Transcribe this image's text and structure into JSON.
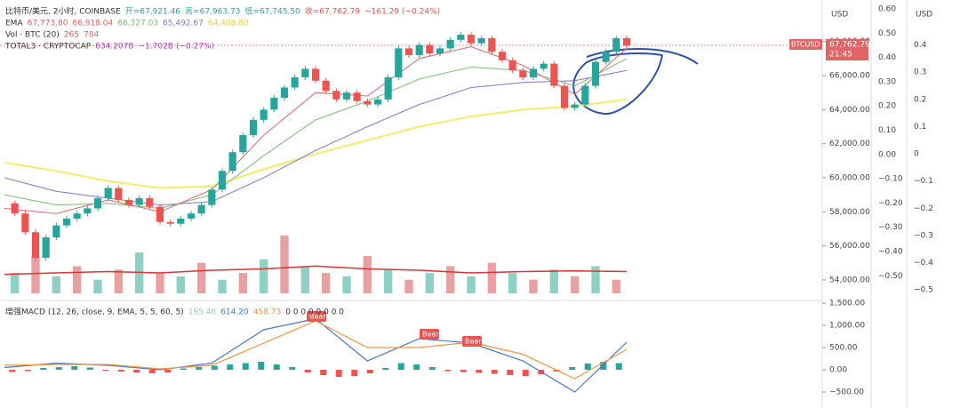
{
  "chart_data": [
    {
      "type": "candlestick",
      "legend_lines": [
        [
          "比特币/美元, 2小时, COINBASE",
          "开=67,921.46",
          "高=67,963.73",
          "低=67,745.50",
          "收=67,762.79",
          "−161.29 (−0.24%)"
        ],
        [
          "EMA",
          "67,773.80",
          "66,918.04",
          "66,327.03",
          "65,492.67",
          "64,408.80"
        ],
        [
          "Vol · BTC (20)",
          "265",
          "784"
        ],
        [
          "TOTAL3 · CRYPTOCAP",
          "634.207B",
          "−1.702B (−0.27%)"
        ]
      ],
      "closes": [
        58500,
        57900,
        56800,
        55300,
        56500,
        57200,
        57600,
        57900,
        58200,
        58800,
        59400,
        58700,
        58400,
        58800,
        58300,
        57400,
        57300,
        57600,
        57900,
        58400,
        59300,
        60400,
        61500,
        62500,
        63400,
        64000,
        64700,
        65300,
        65900,
        66400,
        65700,
        65100,
        64600,
        65000,
        64500,
        64300,
        64600,
        65900,
        67600,
        67200,
        67800,
        67300,
        67600,
        68100,
        68400,
        67900,
        68200,
        67400,
        66900,
        66300,
        65900,
        66400,
        66700,
        65400,
        64100,
        64300,
        65400,
        66800,
        67400,
        68200,
        67762.79
      ],
      "series": [
        {
          "name": "EMA",
          "color": "#f0ee6a",
          "values": [
            60900,
            60400,
            59800,
            59400,
            59500,
            60500,
            61400,
            62200,
            63000,
            63600,
            64000,
            64200,
            64600
          ]
        },
        {
          "name": "EMA",
          "color": "#7b78d6",
          "values": [
            60000,
            59200,
            58800,
            58400,
            58600,
            60000,
            61600,
            63000,
            64300,
            65300,
            65600,
            65700,
            66300
          ]
        },
        {
          "name": "EMA",
          "color": "#7fb87a",
          "values": [
            59000,
            58400,
            58500,
            58200,
            59000,
            61300,
            63400,
            64500,
            65800,
            66500,
            66300,
            65400,
            67000
          ]
        },
        {
          "name": "EMA",
          "color": "#e06666",
          "values": [
            58200,
            57900,
            58700,
            58000,
            59300,
            62500,
            65000,
            64800,
            67000,
            67700,
            66600,
            64900,
            67600
          ]
        }
      ],
      "volume": [
        30,
        55,
        25,
        40,
        20,
        35,
        60,
        30,
        25,
        45,
        20,
        30,
        50,
        85,
        40,
        30,
        25,
        55,
        35,
        20,
        30,
        40,
        25,
        45,
        30,
        20,
        35,
        25,
        40,
        20
      ],
      "volume_ma": [
        28,
        30,
        32,
        30,
        34,
        36,
        40,
        36,
        34,
        30,
        32,
        33,
        32
      ],
      "ylim": [
        52950,
        70440
      ],
      "yticks": [
        {
          "value": 68000,
          "label": "68,000.00"
        },
        {
          "value": 66000,
          "label": "66,000.00"
        },
        {
          "value": 64000,
          "label": "64,000.00"
        },
        {
          "value": 62000,
          "label": "62,000.00"
        },
        {
          "value": 60000,
          "label": "60,000.00"
        },
        {
          "value": 58000,
          "label": "58,000.00"
        },
        {
          "value": 56000,
          "label": "56,000.00"
        },
        {
          "value": 54000,
          "label": "54,000.00"
        }
      ],
      "y2lim": [
        -0.5905,
        0.6366
      ],
      "y2ticks": [
        {
          "value": 0.6,
          "label": "0.60"
        },
        {
          "value": 0.5,
          "label": "0.50"
        },
        {
          "value": 0.4,
          "label": "0.40"
        },
        {
          "value": 0.3,
          "label": "0.30"
        },
        {
          "value": 0.2,
          "label": "0.20"
        },
        {
          "value": 0.1,
          "label": "0.10"
        },
        {
          "value": 0,
          "label": "0.00"
        },
        {
          "value": -0.1,
          "label": "−0.10"
        },
        {
          "value": -0.2,
          "label": "−0.20"
        },
        {
          "value": -0.3,
          "label": "−0.30"
        },
        {
          "value": -0.4,
          "label": "−0.40"
        },
        {
          "value": -0.5,
          "label": "−0.50"
        }
      ],
      "y3lim": [
        -0.529,
        0.565
      ],
      "y3ticks": [
        0.4,
        0.3,
        0.2,
        0.1,
        0,
        {
          "value": -0.1,
          "label": "−0.1"
        },
        {
          "value": -0.2,
          "label": "−0.2"
        },
        {
          "value": -0.3,
          "label": "−0.3"
        },
        {
          "value": -0.4,
          "label": "−0.4"
        },
        {
          "value": -0.5,
          "label": "−0.5"
        }
      ],
      "axis_units": [
        "USD",
        "USD"
      ],
      "price_tag": [
        "BTCUSD",
        "67,762.79",
        "21:45"
      ]
    },
    {
      "type": "line",
      "legend": [
        "增强MACD (12, 26, close, 9, EMA, 5, 5, 60, 5)",
        "195.46",
        "614.20",
        "458.73",
        "0 0 0 0 0 0 0 0"
      ],
      "series": [
        {
          "name": "MACD",
          "color": "#4a72d8",
          "values": [
            50,
            150,
            100,
            0,
            150,
            900,
            1150,
            200,
            700,
            600,
            200,
            -500,
            620
          ]
        },
        {
          "name": "Signal",
          "color": "#f0963c",
          "values": [
            100,
            120,
            120,
            20,
            100,
            600,
            1100,
            500,
            500,
            620,
            350,
            -200,
            460
          ]
        }
      ],
      "histogram": [
        -50,
        -30,
        40,
        60,
        80,
        50,
        -20,
        -40,
        -60,
        -80,
        -60,
        30,
        60,
        90,
        120,
        150,
        180,
        120,
        60,
        -60,
        -120,
        -160,
        -140,
        -80,
        40,
        150,
        120,
        60,
        -30,
        -50,
        -70,
        -90,
        -120,
        -140,
        -100,
        -40,
        60,
        140,
        180,
        150
      ],
      "annotations": [
        "Bear",
        "Bear",
        "Bear"
      ],
      "ylim": [
        -860,
        1620
      ],
      "yticks": [
        {
          "value": 1500,
          "label": "1,500.00"
        },
        {
          "value": 1000,
          "label": "1,000.00"
        },
        {
          "value": 500,
          "label": "500.00"
        },
        {
          "value": 0,
          "label": "0.00"
        },
        {
          "value": -500,
          "label": "−500.00"
        }
      ]
    }
  ]
}
